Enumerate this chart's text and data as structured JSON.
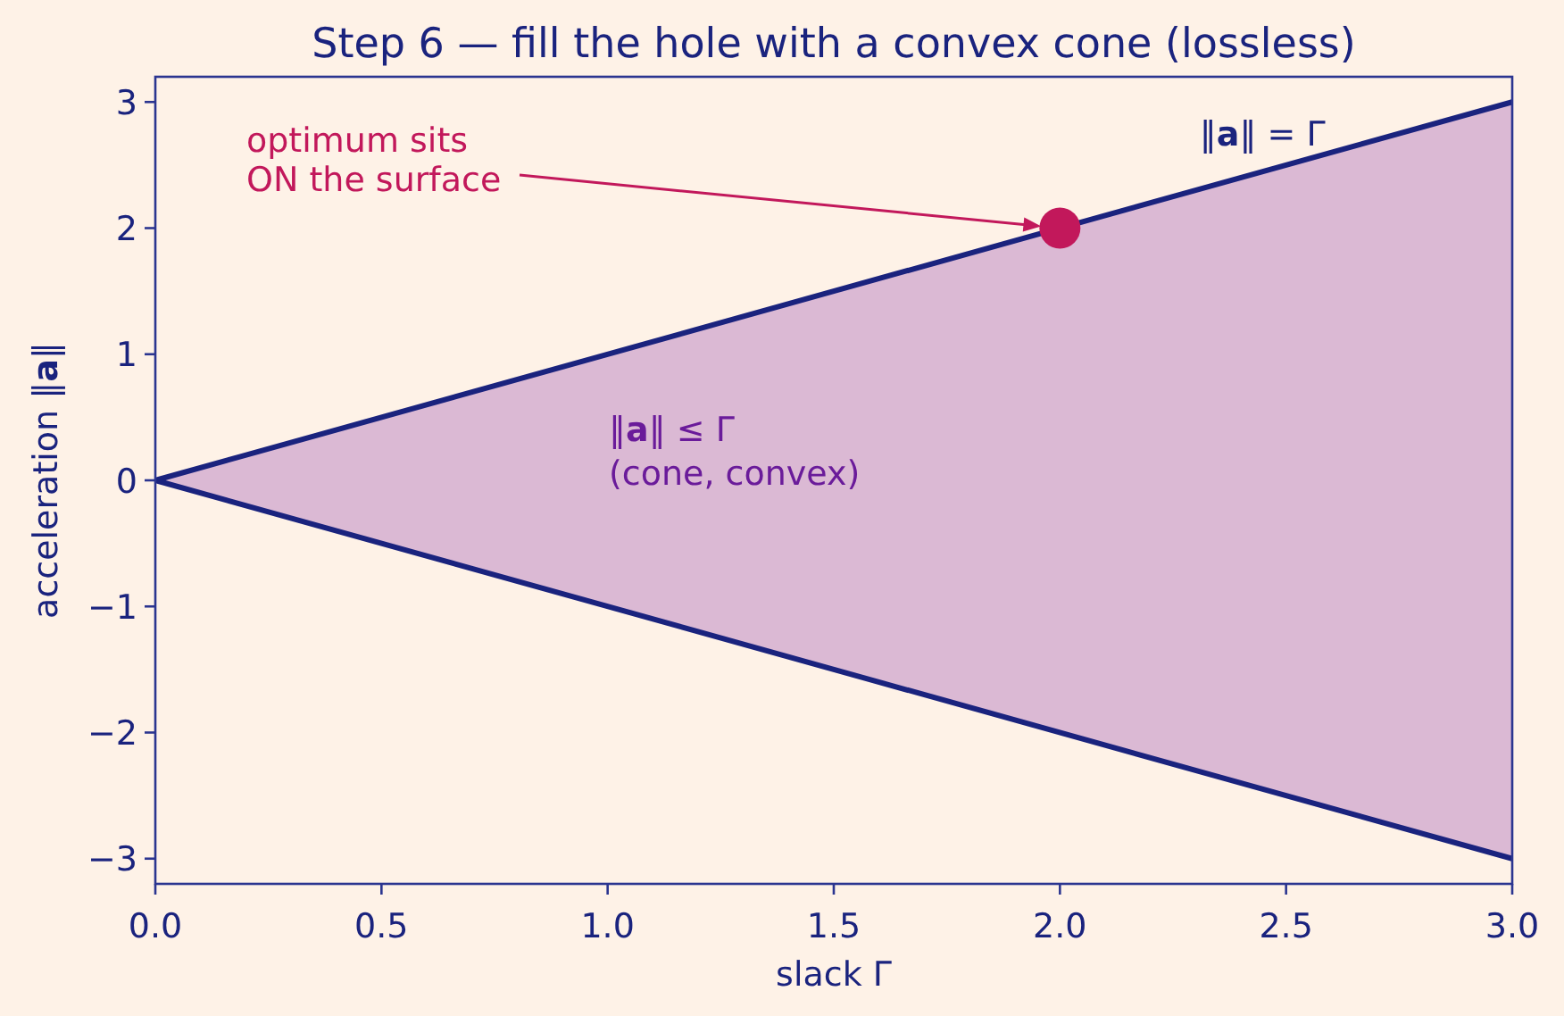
{
  "chart_data": {
    "type": "line",
    "title": "Step 6 — fill the hole with a convex cone (lossless)",
    "xlabel": "slack Γ",
    "ylabel": "acceleration ‖a‖",
    "xlim": [
      0,
      3
    ],
    "ylim": [
      -3.2,
      3.2
    ],
    "xticks": [
      {
        "value": 0,
        "label": "0.0"
      },
      {
        "value": 0.5,
        "label": "0.5"
      },
      {
        "value": 1,
        "label": "1.0"
      },
      {
        "value": 1.5,
        "label": "1.5"
      },
      {
        "value": 2,
        "label": "2.0"
      },
      {
        "value": 2.5,
        "label": "2.5"
      },
      {
        "value": 3,
        "label": "3.0"
      }
    ],
    "yticks": [
      {
        "value": -3,
        "label": "−3"
      },
      {
        "value": -2,
        "label": "−2"
      },
      {
        "value": -1,
        "label": "−1"
      },
      0,
      1,
      2,
      3
    ],
    "series": [
      {
        "name": "‖a‖ = Γ",
        "color": "#1a237e",
        "x": [
          0,
          3
        ],
        "values": [
          0,
          3
        ],
        "lower": [
          0,
          -3
        ],
        "upper": [
          0,
          3
        ]
      },
      {
        "color": "#1a237e",
        "x": [
          0,
          3
        ],
        "values": [
          0,
          -3
        ]
      },
      {
        "type": "scatter",
        "color": "#c2185b",
        "marker": "circle",
        "x": [
          2
        ],
        "values": [
          2
        ]
      }
    ],
    "annotations": [
      "optimum sits\nON the surface",
      "‖a‖ ≤ Γ\n(cone, convex)"
    ]
  }
}
